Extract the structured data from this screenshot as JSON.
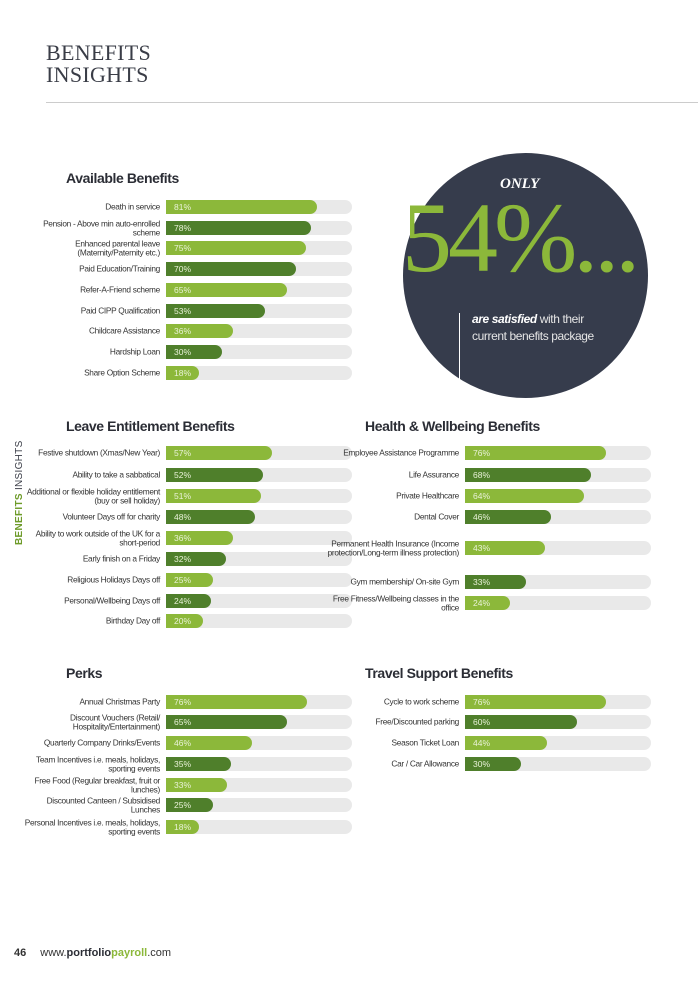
{
  "header": {
    "title_line1": "BENEFITS",
    "title_line2": "INSIGHTS"
  },
  "side_tab": {
    "part1": "BENEFITS",
    "part2": " INSIGHTS"
  },
  "colors": {
    "light_green": "#8cb83a",
    "dark_green": "#4f7f2b",
    "track": "#e9e9e9",
    "circle": "#363c4c"
  },
  "callout": {
    "only": "ONLY",
    "value": "54%...",
    "satisfied_bold": "are satisfied",
    "satisfied_rest": " with their current benefits package"
  },
  "footer": {
    "page_number": "46",
    "url_prefix": "www.",
    "url_bold": "portfolio",
    "url_green": "payroll",
    "url_suffix": ".com"
  },
  "chart_data": [
    {
      "type": "bar",
      "title": "Available Benefits",
      "unit": "%",
      "xlim": [
        0,
        100
      ],
      "categories": [
        "Death in service",
        "Pension - Above min auto-enrolled scheme",
        "Enhanced parental leave (Maternity/Paternity etc.)",
        "Paid Education/Training",
        "Refer-A-Friend scheme",
        "Paid CIPP Qualification",
        "Childcare Assistance",
        "Hardship Loan",
        "Share Option Scheme"
      ],
      "values": [
        81,
        78,
        75,
        70,
        65,
        53,
        36,
        30,
        18
      ]
    },
    {
      "type": "bar",
      "title": "Leave Entitlement Benefits",
      "unit": "%",
      "xlim": [
        0,
        100
      ],
      "categories": [
        "Festive shutdown (Xmas/New Year)",
        "Ability to take a sabbatical",
        "Additional or flexible holiday entitlement (buy or sell holiday)",
        "Volunteer Days off for charity",
        "Ability to work outside of the UK for a short-period",
        "Early finish on a Friday",
        "Religious Holidays Days off",
        "Personal/Wellbeing Days off",
        "Birthday Day off"
      ],
      "values": [
        57,
        52,
        51,
        48,
        36,
        32,
        25,
        24,
        20
      ]
    },
    {
      "type": "bar",
      "title": "Health & Wellbeing Benefits",
      "unit": "%",
      "xlim": [
        0,
        100
      ],
      "categories": [
        "Employee Assistance Programme",
        "Life Assurance",
        "Private Healthcare",
        "Dental Cover",
        "Permanent Health Insurance (Income protection/Long-term illness protection)",
        "Gym membership/ On-site Gym",
        "Free Fitness/Wellbeing classes in the office"
      ],
      "values": [
        76,
        68,
        64,
        46,
        43,
        33,
        24
      ]
    },
    {
      "type": "bar",
      "title": "Perks",
      "unit": "%",
      "xlim": [
        0,
        100
      ],
      "categories": [
        "Annual Christmas Party",
        "Discount Vouchers (Retail/ Hospitality/Entertainment)",
        "Quarterly Company Drinks/Events",
        "Team Incentives i.e. meals, holidays, sporting events",
        "Free Food (Regular breakfast, fruit or lunches)",
        "Discounted Canteen / Subsidised Lunches",
        "Personal Incentives i.e. meals, holidays, sporting events"
      ],
      "values": [
        76,
        65,
        46,
        35,
        33,
        25,
        18
      ]
    },
    {
      "type": "bar",
      "title": "Travel Support Benefits",
      "unit": "%",
      "xlim": [
        0,
        100
      ],
      "categories": [
        "Cycle to work scheme",
        "Free/Discounted parking",
        "Season Ticket Loan",
        "Car / Car Allowance"
      ],
      "values": [
        76,
        60,
        44,
        30
      ]
    }
  ]
}
